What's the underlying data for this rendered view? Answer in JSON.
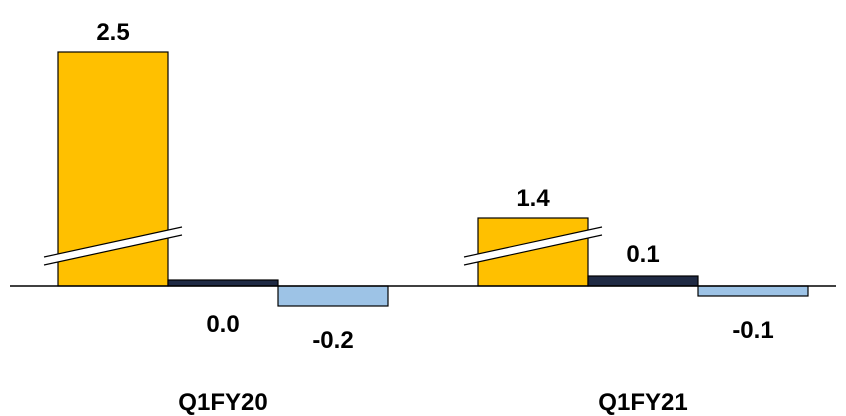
{
  "chart_data": {
    "type": "bar",
    "categories": [
      "Q1FY20",
      "Q1FY21"
    ],
    "series": [
      {
        "values": [
          2.5,
          1.4
        ],
        "color": "#FFC000",
        "axis_break": true
      },
      {
        "values": [
          0.0,
          0.1
        ],
        "color": "#1F2A44"
      },
      {
        "values": [
          -0.2,
          -0.1
        ],
        "color": "#9DC3E6"
      }
    ],
    "data_labels": [
      [
        "2.5",
        "0.0",
        "-0.2"
      ],
      [
        "1.4",
        "0.1",
        "-0.1"
      ]
    ],
    "title": "",
    "xlabel": "",
    "ylabel": "",
    "legend": "none",
    "grid": false
  }
}
